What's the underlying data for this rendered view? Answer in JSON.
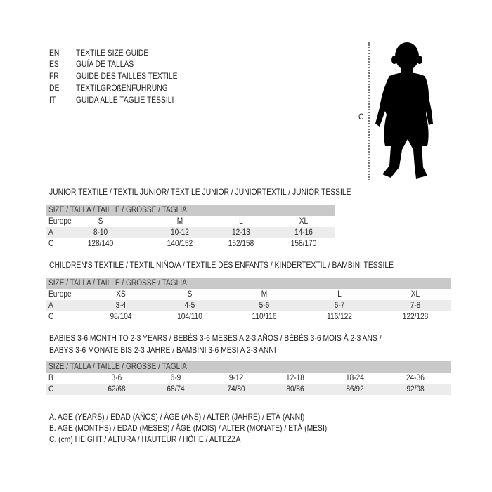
{
  "title_lines": [
    {
      "code": "EN",
      "text": "TEXTILE SIZE GUIDE"
    },
    {
      "code": "ES",
      "text": "GUÍA DE TALLAS"
    },
    {
      "code": "FR",
      "text": "GUIDE DES TAILLES TEXTILE"
    },
    {
      "code": "DE",
      "text": "TEXTILGRÖßENFÜHRUNG"
    },
    {
      "code": "IT",
      "text": "GUIDA ALLE TAGLIE TESSILI"
    }
  ],
  "figure": {
    "measure_label": "C",
    "icon": "child-silhouette-icon"
  },
  "sections": [
    {
      "heading": [
        "JUNIOR TEXTILE / TEXTIL JUNIOR/ TEXTILE JUNIOR / JUNIORTEXTIL / JUNIOR TESSILE"
      ],
      "header": "SIZE / TALLA / TAILLE / GRÖSSE / TAGLIA",
      "rows": [
        {
          "label": "Europe",
          "values": [
            "S",
            "M",
            "L",
            "XL"
          ]
        },
        {
          "label": "A",
          "values": [
            "8-10",
            "10-12",
            "12-13",
            "14-16"
          ]
        },
        {
          "label": "C",
          "values": [
            "128/140",
            "140/152",
            "152/158",
            "158/170"
          ]
        }
      ]
    },
    {
      "heading": [
        "CHILDREN'S TEXTILE / TEXTIL NIÑO/A / TEXTILE DES ENFANTS / KINDERTEXTIL / BAMBINI TESSILE"
      ],
      "header": "SIZE / TALLA / TAILLE / GRÖSSE / TAGLIA",
      "rows": [
        {
          "label": "Europe",
          "values": [
            "XS",
            "S",
            "M",
            "L",
            "XL"
          ]
        },
        {
          "label": "A",
          "values": [
            "3-4",
            "4-5",
            "5-6",
            "6-7",
            "7-8"
          ]
        },
        {
          "label": "C",
          "values": [
            "98/104",
            "104/110",
            "110/116",
            "116/122",
            "122/128"
          ]
        }
      ]
    },
    {
      "heading": [
        "BABIES 3-6 MONTH TO 2-3 YEARS / BEBÉS 3-6 MESES A 2-3 AÑOS / BÉBÉS 3-6 MOIS À 2-3 ANS /",
        "BABYS 3-6 MONATE BIS 2-3 JAHRE / BAMBINI 3-6 MESI A 2-3 ANNI"
      ],
      "header": "SIZE / TALLA / TAILLE / GRÖSSE / TAGLIA",
      "rows": [
        {
          "label": "B",
          "values": [
            "3-6",
            "6-9",
            "9-12",
            "12-18",
            "18-24",
            "24-36"
          ]
        },
        {
          "label": "C",
          "values": [
            "62/68",
            "68/74",
            "74/80",
            "80/86",
            "86/92",
            "92/98"
          ]
        }
      ]
    }
  ],
  "legend": [
    "A. AGE (YEARS) / EDAD (AÑOS) / ÂGE (ANS) / ALTER (JAHRE) / ETÀ (ANNI)",
    "B. AGE (MONTHS) / EDAD (MESES) / ÂGE (MOIS) / ALTER (MONATE) / ETÀ (MESI)",
    "C. (cm) HEIGHT / ALTURA / HAUTEUR / HÖHE / ALTEZZA"
  ]
}
